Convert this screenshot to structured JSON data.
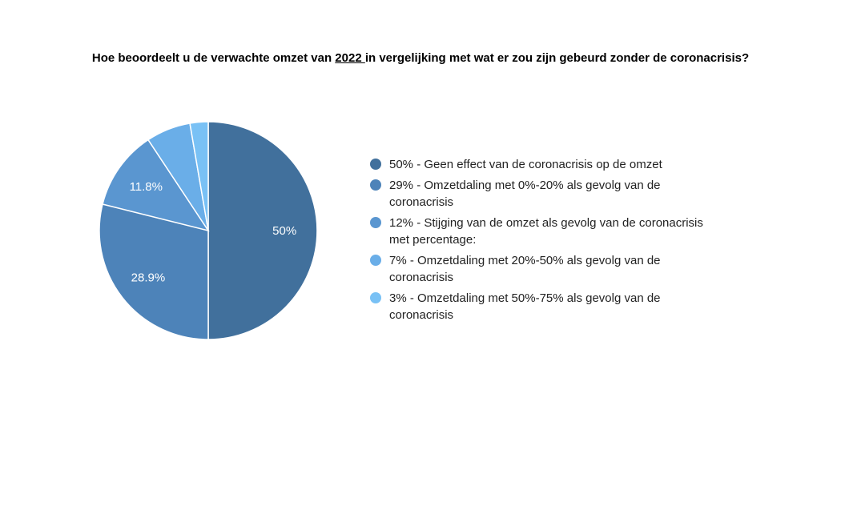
{
  "title": {
    "before": "Hoe beoordeelt u de verwachte omzet van ",
    "underlined": "2022 ",
    "after": "in vergelijking met wat er zou zijn gebeurd zonder de coronacrisis?"
  },
  "chart_data": {
    "type": "pie",
    "slices": [
      {
        "label": "50% - Geen effect van de coronacrisis op de omzet",
        "value": 50,
        "data_label": "50%",
        "color": "#41709c"
      },
      {
        "label": "29% - Omzetdaling met 0%-20% als gevolg van de coronacrisis",
        "value": 28.9,
        "data_label": "28.9%",
        "color": "#4d83b9"
      },
      {
        "label": "12% - Stijging van de omzet als gevolg van de coronacrisis met percentage:",
        "value": 11.8,
        "data_label": "11.8%",
        "color": "#5a96d0"
      },
      {
        "label": "7% - Omzetdaling met 20%-50% als gevolg van de coronacrisis",
        "value": 6.6,
        "data_label": "",
        "color": "#6aaee8"
      },
      {
        "label": "3% - Omzetdaling met 50%-75% als gevolg van de coronacrisis",
        "value": 2.7,
        "data_label": "",
        "color": "#79c1f5"
      }
    ],
    "legend_position": "right",
    "label_color": "#ffffff"
  }
}
